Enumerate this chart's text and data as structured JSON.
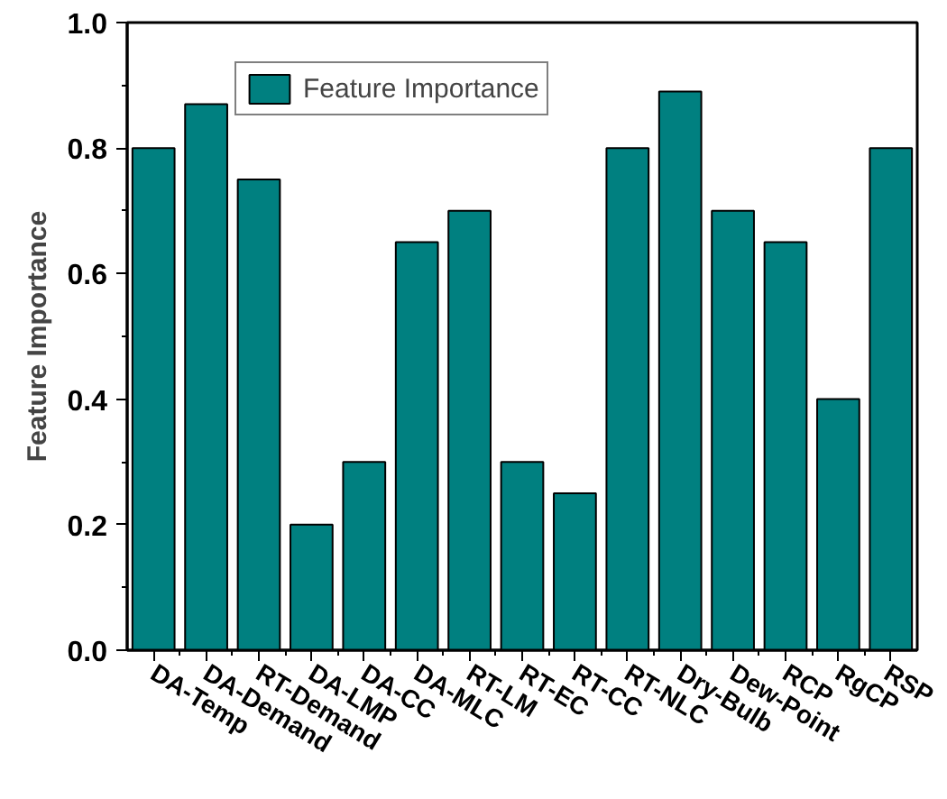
{
  "chart_data": {
    "type": "bar",
    "ylabel": "Feature Importance",
    "categories": [
      "DA-Temp",
      "DA-Demand",
      "RT-Demand",
      "DA-LMP",
      "DA-CC",
      "DA-MLC",
      "RT-LM",
      "RT-EC",
      "RT-CC",
      "RT-NLC",
      "Dry-Bulb",
      "Dew-Point",
      "RCP",
      "RgCP",
      "RSP"
    ],
    "series": [
      {
        "name": "Feature Importance",
        "color": "#008080",
        "values": [
          0.8,
          0.87,
          0.75,
          0.2,
          0.3,
          0.65,
          0.7,
          0.3,
          0.25,
          0.8,
          0.89,
          0.7,
          0.65,
          0.4,
          0.8
        ]
      }
    ],
    "ylim": [
      0,
      1
    ],
    "yticks": [
      {
        "value": 0,
        "label": "0.0"
      },
      0.2,
      0.4,
      0.6,
      0.8,
      {
        "value": 1,
        "label": "1.0"
      }
    ],
    "grid": false,
    "legend": "top left"
  }
}
